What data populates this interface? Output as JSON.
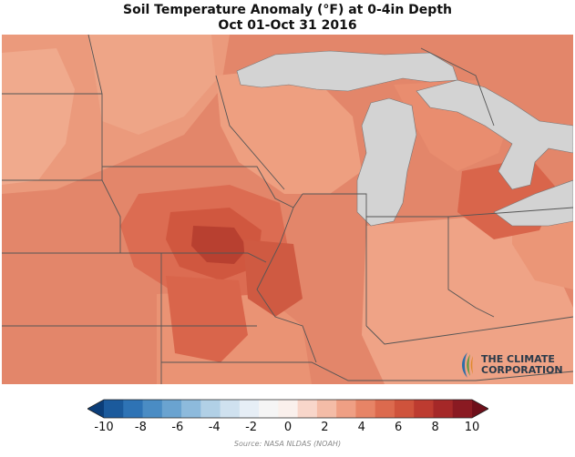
{
  "title": {
    "line1": "Soil Temperature Anomaly (°F) at 0-4in Depth",
    "line2": "Oct 01-Oct 31 2016"
  },
  "map": {
    "region": "Upper Midwest / Great Lakes, USA",
    "lake_color": "#d3d3d3",
    "state_line_color": "#555555"
  },
  "colorbar": {
    "min": -10,
    "max": 10,
    "step": 1,
    "tick_labels": [
      "-10",
      "-8",
      "-6",
      "-4",
      "-2",
      "0",
      "2",
      "4",
      "6",
      "8",
      "10"
    ],
    "colors": [
      "#0b3d78",
      "#1b5a9c",
      "#2e73b5",
      "#4a8cc4",
      "#6aa3d0",
      "#8dbadc",
      "#b1d0e6",
      "#cfe1ef",
      "#e6eef6",
      "#f5f5f5",
      "#faf0ec",
      "#f8d6ca",
      "#f4bca7",
      "#ef9f84",
      "#e78466",
      "#dc6a4e",
      "#cf533c",
      "#bd3b30",
      "#a52828",
      "#8a1a22",
      "#6e0f1a"
    ]
  },
  "logo": {
    "line1": "THE CLIMATE",
    "line2": "CORPORATION"
  },
  "source": "Source: NASA NLDAS (NOAH)"
}
